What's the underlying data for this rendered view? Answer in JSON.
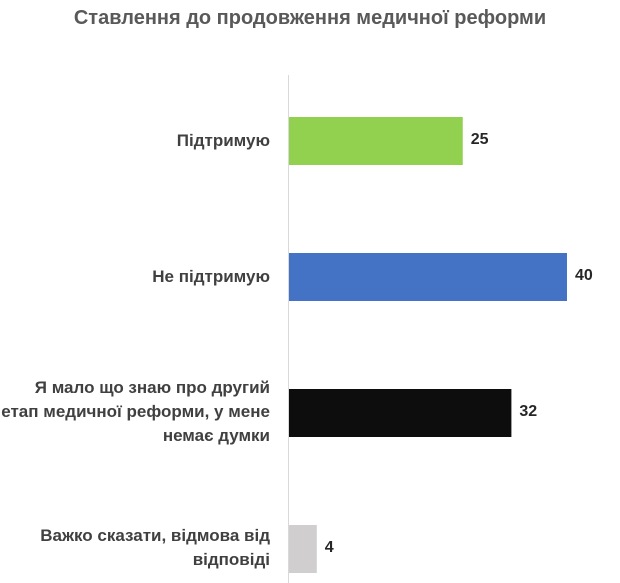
{
  "chart_data": {
    "type": "bar",
    "orientation": "horizontal",
    "title": "Ставлення до продовження медичної реформи",
    "categories": [
      "Підтримую",
      "Не підтримую",
      "Я мало що знаю про другий етап медичної реформи, у мене немає думки",
      "Важко сказати, відмова від відповіді"
    ],
    "values": [
      25,
      40,
      32,
      4
    ],
    "value_labels": [
      "25",
      "40",
      "32",
      "4"
    ],
    "colors": [
      "#92d050",
      "#4472c4",
      "#0d0d0d",
      "#d0cece"
    ],
    "xlim": [
      0,
      40
    ],
    "grid": false,
    "legend": "none"
  }
}
